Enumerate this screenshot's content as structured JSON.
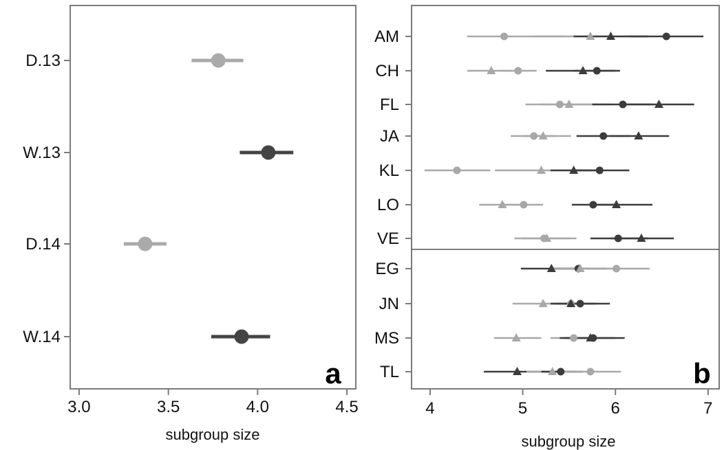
{
  "chart_data": [
    {
      "type": "scatter",
      "panel_label": "a",
      "xlabel": "subgroup size",
      "xlim": [
        2.95,
        4.55
      ],
      "x_ticks": [
        "3.0",
        "3.5",
        "4.0",
        "4.5"
      ],
      "categories": [
        "D.13",
        "W.13",
        "D.14",
        "W.14"
      ],
      "points": [
        {
          "category": "D.13",
          "x": 3.78,
          "low": 3.63,
          "high": 3.92,
          "color": "#aaaaaa"
        },
        {
          "category": "W.13",
          "x": 4.06,
          "low": 3.9,
          "high": 4.2,
          "color": "#444444"
        },
        {
          "category": "D.14",
          "x": 3.37,
          "low": 3.25,
          "high": 3.49,
          "color": "#aaaaaa"
        },
        {
          "category": "W.14",
          "x": 3.91,
          "low": 3.74,
          "high": 4.07,
          "color": "#444444"
        }
      ],
      "grid": false
    },
    {
      "type": "scatter",
      "panel_label": "b",
      "xlabel": "subgroup size",
      "xlim": [
        3.8,
        7.12
      ],
      "x_ticks": [
        "4",
        "5",
        "6",
        "7"
      ],
      "categories": [
        "AM",
        "CH",
        "FL",
        "JA",
        "KL",
        "LO",
        "VE",
        "EG",
        "JN",
        "MS",
        "TL"
      ],
      "group_divider_after": "VE",
      "marker_shapes": [
        "circle",
        "triangle"
      ],
      "colors": {
        "light": "#a8a8a8",
        "dark": "#3c3c3c"
      },
      "series": [
        {
          "category": "AM",
          "color": "light",
          "shape": "circle",
          "x": 4.8,
          "low": 4.4,
          "high": 5.45
        },
        {
          "category": "AM",
          "color": "light",
          "shape": "triangle",
          "x": 5.73,
          "low": 5.1,
          "high": 6.35
        },
        {
          "category": "AM",
          "color": "dark",
          "shape": "triangle",
          "x": 5.95,
          "low": 5.55,
          "high": 6.35
        },
        {
          "category": "AM",
          "color": "dark",
          "shape": "circle",
          "x": 6.55,
          "low": 6.15,
          "high": 6.95
        },
        {
          "category": "CH",
          "color": "light",
          "shape": "triangle",
          "x": 4.66,
          "low": 4.4,
          "high": 4.95
        },
        {
          "category": "CH",
          "color": "light",
          "shape": "circle",
          "x": 4.95,
          "low": 4.75,
          "high": 5.15
        },
        {
          "category": "CH",
          "color": "dark",
          "shape": "triangle",
          "x": 5.65,
          "low": 5.25,
          "high": 6.0
        },
        {
          "category": "CH",
          "color": "dark",
          "shape": "circle",
          "x": 5.8,
          "low": 5.55,
          "high": 6.05
        },
        {
          "category": "FL",
          "color": "light",
          "shape": "circle",
          "x": 5.4,
          "low": 5.03,
          "high": 5.8
        },
        {
          "category": "FL",
          "color": "light",
          "shape": "triangle",
          "x": 5.5,
          "low": 5.2,
          "high": 5.95
        },
        {
          "category": "FL",
          "color": "dark",
          "shape": "circle",
          "x": 6.08,
          "low": 5.75,
          "high": 6.4
        },
        {
          "category": "FL",
          "color": "dark",
          "shape": "triangle",
          "x": 6.47,
          "low": 6.1,
          "high": 6.85
        },
        {
          "category": "JA",
          "color": "light",
          "shape": "circle",
          "x": 5.12,
          "low": 4.87,
          "high": 5.35
        },
        {
          "category": "JA",
          "color": "light",
          "shape": "triangle",
          "x": 5.22,
          "low": 5.0,
          "high": 5.52
        },
        {
          "category": "JA",
          "color": "dark",
          "shape": "circle",
          "x": 5.87,
          "low": 5.58,
          "high": 6.15
        },
        {
          "category": "JA",
          "color": "dark",
          "shape": "triangle",
          "x": 6.25,
          "low": 5.95,
          "high": 6.58
        },
        {
          "category": "KL",
          "color": "light",
          "shape": "circle",
          "x": 4.29,
          "low": 3.94,
          "high": 4.65
        },
        {
          "category": "KL",
          "color": "light",
          "shape": "triangle",
          "x": 5.2,
          "low": 4.7,
          "high": 5.7
        },
        {
          "category": "KL",
          "color": "dark",
          "shape": "triangle",
          "x": 5.55,
          "low": 5.3,
          "high": 5.85
        },
        {
          "category": "KL",
          "color": "dark",
          "shape": "circle",
          "x": 5.83,
          "low": 5.55,
          "high": 6.15
        },
        {
          "category": "LO",
          "color": "light",
          "shape": "triangle",
          "x": 4.78,
          "low": 4.53,
          "high": 5.05
        },
        {
          "category": "LO",
          "color": "light",
          "shape": "circle",
          "x": 5.01,
          "low": 4.8,
          "high": 5.22
        },
        {
          "category": "LO",
          "color": "dark",
          "shape": "circle",
          "x": 5.76,
          "low": 5.53,
          "high": 6.0
        },
        {
          "category": "LO",
          "color": "dark",
          "shape": "triangle",
          "x": 6.01,
          "low": 5.75,
          "high": 6.4
        },
        {
          "category": "VE",
          "color": "light",
          "shape": "circle",
          "x": 5.23,
          "low": 4.91,
          "high": 5.5
        },
        {
          "category": "VE",
          "color": "light",
          "shape": "triangle",
          "x": 5.26,
          "low": 5.0,
          "high": 5.58
        },
        {
          "category": "VE",
          "color": "dark",
          "shape": "circle",
          "x": 6.03,
          "low": 5.73,
          "high": 6.35
        },
        {
          "category": "VE",
          "color": "dark",
          "shape": "triangle",
          "x": 6.28,
          "low": 5.95,
          "high": 6.63
        },
        {
          "category": "EG",
          "color": "dark",
          "shape": "triangle",
          "x": 5.31,
          "low": 4.98,
          "high": 5.6
        },
        {
          "category": "EG",
          "color": "dark",
          "shape": "circle",
          "x": 5.6,
          "low": 5.3,
          "high": 5.9
        },
        {
          "category": "EG",
          "color": "light",
          "shape": "triangle",
          "x": 5.62,
          "low": 5.3,
          "high": 5.95
        },
        {
          "category": "EG",
          "color": "light",
          "shape": "circle",
          "x": 6.01,
          "low": 5.65,
          "high": 6.37
        },
        {
          "category": "JN",
          "color": "light",
          "shape": "triangle",
          "x": 5.22,
          "low": 4.89,
          "high": 5.5
        },
        {
          "category": "JN",
          "color": "light",
          "shape": "circle",
          "x": 5.52,
          "low": 5.3,
          "high": 5.75
        },
        {
          "category": "JN",
          "color": "dark",
          "shape": "triangle",
          "x": 5.52,
          "low": 5.3,
          "high": 5.8
        },
        {
          "category": "JN",
          "color": "dark",
          "shape": "circle",
          "x": 5.62,
          "low": 5.35,
          "high": 5.94
        },
        {
          "category": "MS",
          "color": "light",
          "shape": "triangle",
          "x": 4.93,
          "low": 4.69,
          "high": 5.2
        },
        {
          "category": "MS",
          "color": "light",
          "shape": "circle",
          "x": 5.55,
          "low": 5.3,
          "high": 5.8
        },
        {
          "category": "MS",
          "color": "dark",
          "shape": "triangle",
          "x": 5.73,
          "low": 5.45,
          "high": 6.0
        },
        {
          "category": "MS",
          "color": "dark",
          "shape": "circle",
          "x": 5.76,
          "low": 5.4,
          "high": 6.1
        },
        {
          "category": "TL",
          "color": "dark",
          "shape": "triangle",
          "x": 4.94,
          "low": 4.58,
          "high": 5.3
        },
        {
          "category": "TL",
          "color": "light",
          "shape": "triangle",
          "x": 5.32,
          "low": 5.04,
          "high": 5.6
        },
        {
          "category": "TL",
          "color": "dark",
          "shape": "circle",
          "x": 5.41,
          "low": 5.2,
          "high": 5.65
        },
        {
          "category": "TL",
          "color": "light",
          "shape": "circle",
          "x": 5.73,
          "low": 5.4,
          "high": 6.06
        }
      ],
      "grid": false
    }
  ]
}
